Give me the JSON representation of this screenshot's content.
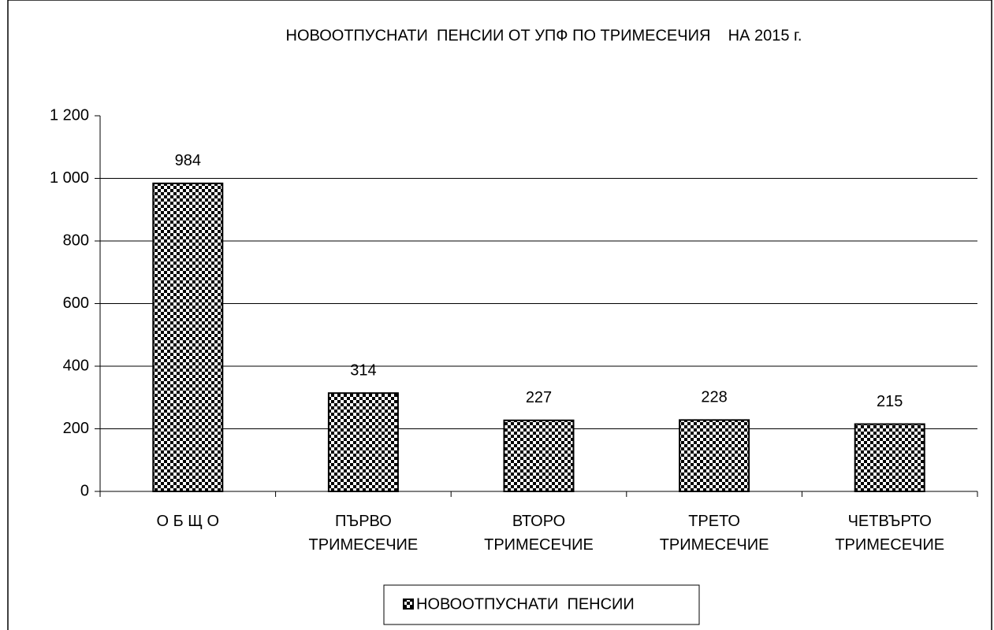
{
  "chart_data": {
    "type": "bar",
    "title": "НОВООТПУСНАТИ  ПЕНСИИ ОТ УПФ ПО ТРИМЕСЕЧИЯ    НА 2015 г.",
    "categories": [
      "О Б Щ О",
      "ПЪРВО\nТРИМЕСЕЧИЕ",
      "ВТОРО\nТРИМЕСЕЧИЕ",
      "ТРЕТО\nТРИМЕСЕЧИЕ",
      "ЧЕТВЪРТО\nТРИМЕСЕЧИЕ"
    ],
    "series": [
      {
        "name": "НОВООТПУСНАТИ  ПЕНСИИ",
        "color": "#000000",
        "values": [
          984,
          314,
          227,
          228,
          215
        ]
      }
    ],
    "ylim": [
      0,
      1200
    ],
    "yticks": [
      0,
      200,
      400,
      600,
      800,
      {
        "value": 1000,
        "label": "1 000"
      },
      {
        "value": 1200,
        "label": "1 200"
      }
    ],
    "grid": true,
    "legend": "bottom"
  }
}
